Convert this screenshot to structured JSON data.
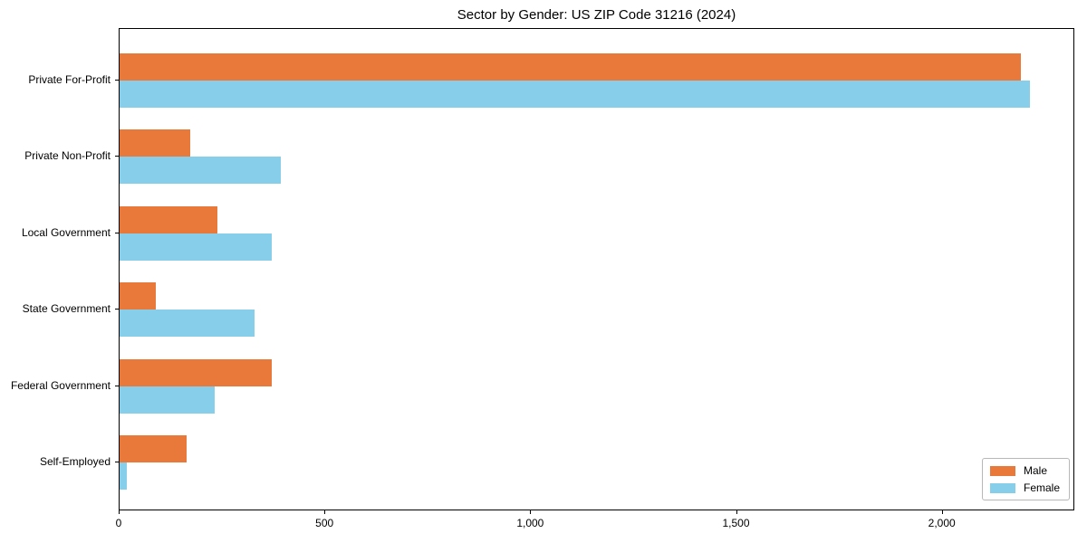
{
  "chart_data": {
    "type": "bar",
    "orientation": "horizontal",
    "title": "Sector by Gender: US ZIP Code 31216 (2024)",
    "categories": [
      "Private For-Profit",
      "Private Non-Profit",
      "Local Government",
      "State Government",
      "Federal Government",
      "Self-Employed"
    ],
    "series": [
      {
        "name": "Male",
        "color": "#e8793b",
        "values": [
          2190,
          172,
          237,
          87,
          370,
          162
        ]
      },
      {
        "name": "Female",
        "color": "#87ceeb",
        "values": [
          2212,
          392,
          369,
          329,
          230,
          17
        ]
      }
    ],
    "xlabel": "",
    "ylabel": "",
    "xlim": [
      0,
      2322
    ],
    "x_ticks": [
      0,
      500,
      1000,
      1500,
      2000
    ],
    "x_tick_labels": [
      "0",
      "500",
      "1,000",
      "1,500",
      "2,000"
    ],
    "grid": false,
    "legend": {
      "position": "lower right",
      "entries": [
        "Male",
        "Female"
      ]
    }
  },
  "colors": {
    "male": "#e8793b",
    "female": "#87ceeb",
    "spine": "#000000",
    "background": "#ffffff",
    "legend_border": "#b7b7b7",
    "text": "#000000"
  }
}
